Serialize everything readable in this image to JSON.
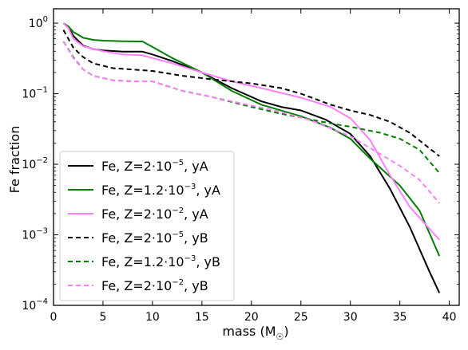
{
  "chart_data": {
    "type": "line",
    "title": "",
    "xlabel": "mass (M☉)",
    "ylabel": "Fe fraction",
    "xlim": [
      0,
      41
    ],
    "ylim": [
      0.0001,
      1.6
    ],
    "yscale": "log",
    "grid": false,
    "legend_placement": "lower-left",
    "xticks": [
      "0",
      "5",
      "10",
      "15",
      "20",
      "25",
      "30",
      "35",
      "40"
    ],
    "yticks": [
      "10^-4",
      "10^-3",
      "10^-2",
      "10^-1",
      "10^0"
    ],
    "series": [
      {
        "name": "Fe, Z=2·10^-5, yA",
        "color": "#000000",
        "style": "solid",
        "x": [
          1,
          1.5,
          2,
          3,
          4,
          5,
          7,
          9,
          10,
          12,
          15,
          18,
          21,
          23,
          25,
          27.5,
          30,
          32,
          34,
          36,
          38,
          39
        ],
        "y": [
          1.0,
          0.88,
          0.66,
          0.48,
          0.43,
          0.41,
          0.395,
          0.395,
          0.36,
          0.29,
          0.2,
          0.12,
          0.078,
          0.065,
          0.058,
          0.043,
          0.027,
          0.013,
          0.0045,
          0.0013,
          0.0003,
          0.00015
        ]
      },
      {
        "name": "Fe, Z=1.2·10^-3, yA",
        "color": "#008000",
        "style": "solid",
        "x": [
          1,
          1.5,
          2,
          3,
          4,
          5,
          7,
          9,
          10,
          12,
          15,
          18,
          21,
          25,
          28,
          30,
          32,
          35,
          37,
          39
        ],
        "y": [
          1.0,
          0.9,
          0.75,
          0.62,
          0.58,
          0.565,
          0.555,
          0.55,
          0.46,
          0.32,
          0.2,
          0.11,
          0.07,
          0.048,
          0.033,
          0.023,
          0.012,
          0.005,
          0.0022,
          0.0005
        ]
      },
      {
        "name": "Fe, Z=2·10^-2, yA",
        "color": "#ff80ff",
        "style": "solid",
        "x": [
          1,
          1.5,
          2,
          3,
          5,
          7,
          9,
          10,
          12,
          15,
          18,
          21,
          25,
          28,
          30,
          32,
          34,
          36,
          39
        ],
        "y": [
          1.0,
          0.85,
          0.6,
          0.47,
          0.4,
          0.36,
          0.35,
          0.32,
          0.27,
          0.2,
          0.15,
          0.12,
          0.088,
          0.065,
          0.045,
          0.022,
          0.007,
          0.0025,
          0.00085
        ]
      },
      {
        "name": "Fe, Z=2·10^-5, yB",
        "color": "#000000",
        "style": "dashed",
        "x": [
          1,
          2,
          3,
          4,
          6,
          8,
          10,
          13,
          16,
          20,
          23,
          25,
          28,
          30,
          32,
          34,
          36,
          39
        ],
        "y": [
          0.8,
          0.45,
          0.33,
          0.27,
          0.23,
          0.22,
          0.21,
          0.18,
          0.16,
          0.14,
          0.12,
          0.1,
          0.07,
          0.058,
          0.05,
          0.04,
          0.028,
          0.013
        ]
      },
      {
        "name": "Fe, Z=1.2·10^-3, yB",
        "color": "#008000",
        "style": "dashed",
        "x": [
          1,
          2,
          3,
          4,
          6,
          8,
          10,
          13,
          16,
          20,
          23,
          25,
          28,
          30,
          33,
          35,
          37,
          39
        ],
        "y": [
          0.55,
          0.33,
          0.22,
          0.18,
          0.155,
          0.15,
          0.15,
          0.11,
          0.09,
          0.065,
          0.052,
          0.046,
          0.038,
          0.034,
          0.028,
          0.023,
          0.016,
          0.0075
        ]
      },
      {
        "name": "Fe, Z=2·10^-2, yB",
        "color": "#ff80ff",
        "style": "dashed",
        "x": [
          1,
          2,
          3,
          4,
          6,
          8,
          10,
          13,
          16,
          20,
          23,
          26,
          30,
          33,
          35,
          37,
          39
        ],
        "y": [
          0.55,
          0.32,
          0.22,
          0.18,
          0.155,
          0.15,
          0.15,
          0.11,
          0.09,
          0.068,
          0.055,
          0.042,
          0.025,
          0.014,
          0.0095,
          0.006,
          0.0028
        ]
      }
    ]
  },
  "legend": {
    "entries": [
      {
        "prefix": "Fe, Z=2·10",
        "exp": "−5",
        "suffix": ", yA"
      },
      {
        "prefix": "Fe, Z=1.2·10",
        "exp": "−3",
        "suffix": ", yA"
      },
      {
        "prefix": "Fe, Z=2·10",
        "exp": "−2",
        "suffix": ", yA"
      },
      {
        "prefix": "Fe, Z=2·10",
        "exp": "−5",
        "suffix": ", yB"
      },
      {
        "prefix": "Fe, Z=1.2·10",
        "exp": "−3",
        "suffix": ", yB"
      },
      {
        "prefix": "Fe, Z=2·10",
        "exp": "−2",
        "suffix": ", yB"
      }
    ]
  },
  "axis_text": {
    "ylabel": "Fe fraction",
    "xlabel_main": "mass (M",
    "xlabel_sub": "☉",
    "xlabel_close": ")",
    "ytick_base": "10",
    "ytick_exps": [
      "−4",
      "−3",
      "−2",
      "−1",
      "0"
    ]
  }
}
